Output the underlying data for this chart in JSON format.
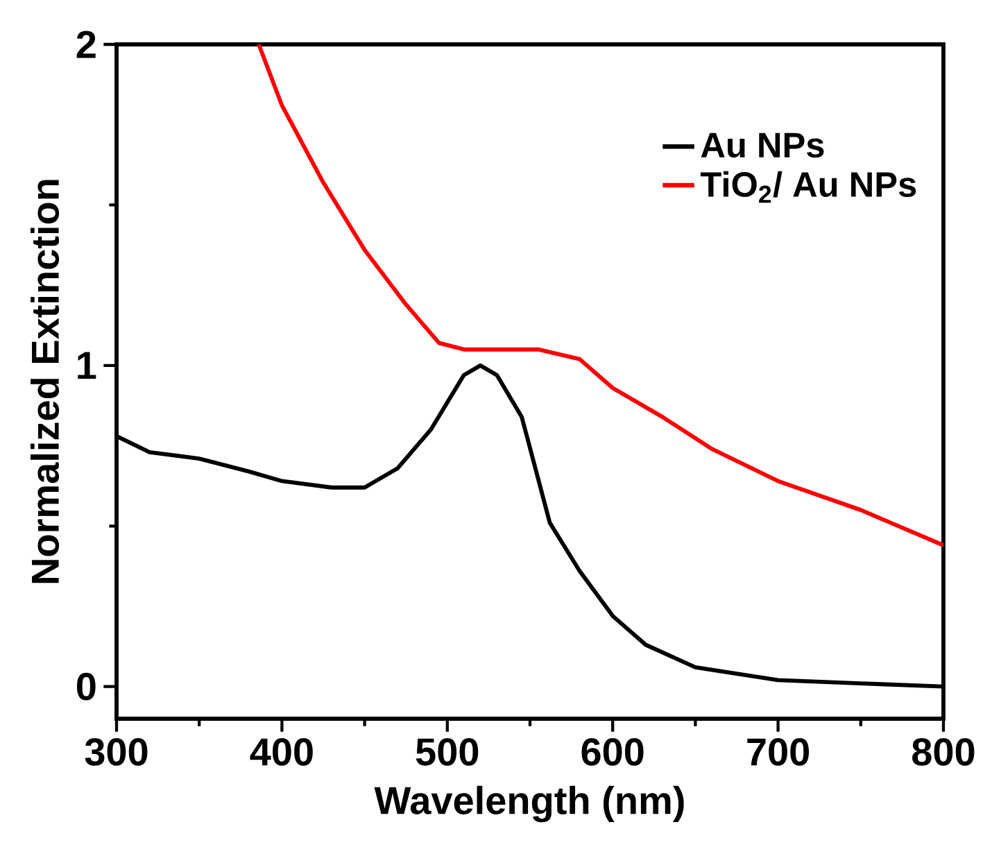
{
  "chart_data": {
    "type": "line",
    "xlabel": "Wavelength (nm)",
    "ylabel": "Normalized Extinction",
    "xlim": [
      300,
      800
    ],
    "ylim": [
      -0.1,
      2
    ],
    "xticks": [
      300,
      {
        "value": 350,
        "label": null
      },
      400,
      {
        "value": 450,
        "label": null
      },
      500,
      {
        "value": 550,
        "label": null
      },
      600,
      {
        "value": 650,
        "label": null
      },
      700,
      {
        "value": 750,
        "label": null
      },
      800
    ],
    "yticks": [
      0,
      {
        "value": 0.5,
        "label": null
      },
      1,
      {
        "value": 1.5,
        "label": null
      },
      2
    ],
    "legend": "top right",
    "grid": false,
    "marker": "none",
    "line_style": "solid",
    "series": [
      {
        "name": "Au NPs",
        "color": "#000000",
        "x": [
          300,
          320,
          350,
          380,
          400,
          430,
          450,
          470,
          490,
          510,
          520,
          530,
          545,
          562,
          580,
          600,
          620,
          650,
          700,
          750,
          800
        ],
        "values": [
          0.78,
          0.73,
          0.71,
          0.67,
          0.64,
          0.62,
          0.62,
          0.68,
          0.8,
          0.97,
          1.0,
          0.97,
          0.84,
          0.51,
          0.36,
          0.22,
          0.13,
          0.06,
          0.02,
          0.01,
          0.0
        ]
      },
      {
        "name": "TiO$_{2}$/ Au NPs",
        "color": "#ff0000",
        "x": [
          386,
          400,
          425,
          450,
          475,
          495,
          510,
          530,
          555,
          580,
          600,
          630,
          660,
          700,
          750,
          800
        ],
        "values": [
          2.0,
          1.81,
          1.57,
          1.36,
          1.19,
          1.07,
          1.05,
          1.05,
          1.05,
          1.02,
          0.93,
          0.84,
          0.74,
          0.64,
          0.55,
          0.44
        ]
      }
    ]
  }
}
